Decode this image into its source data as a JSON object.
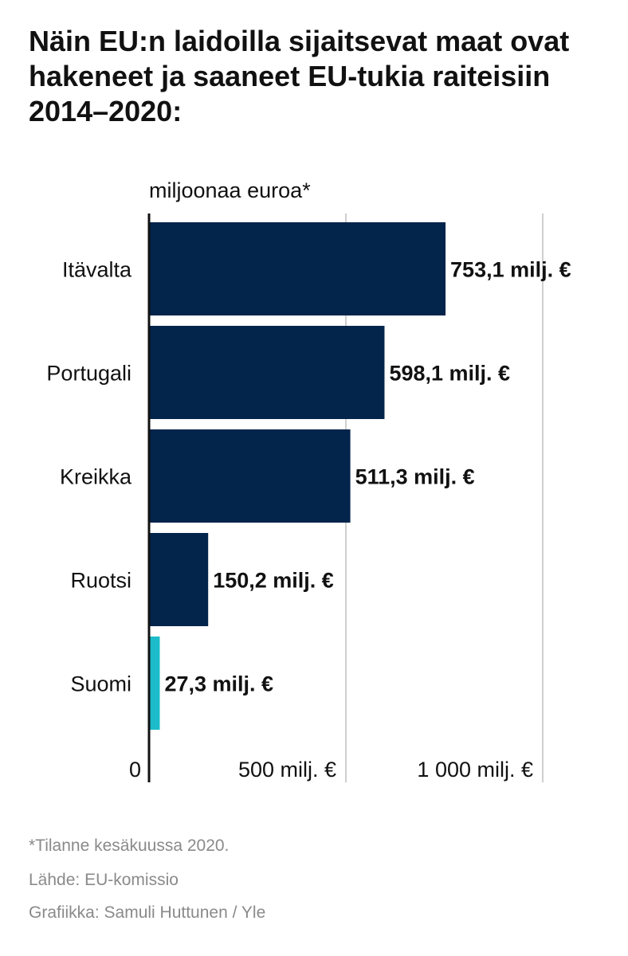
{
  "title": "Näin EU:n laidoilla sijaitsevat maat ovat hakeneet ja saaneet EU-tukia raiteisiin 2014–2020:",
  "chart_data": {
    "type": "bar",
    "orientation": "horizontal",
    "unit_label": "miljoonaa euroa*",
    "categories": [
      "Itävalta",
      "Portugali",
      "Kreikka",
      "Ruotsi",
      "Suomi"
    ],
    "values": [
      753.1,
      598.1,
      511.3,
      150.2,
      27.3
    ],
    "data_labels": [
      "753,1 milj. €",
      "598,1 milj. €",
      "511,3 milj. €",
      "150,2 milj. €",
      "27,3 milj. €"
    ],
    "highlight_category": "Suomi",
    "colors": {
      "default": "#03244b",
      "highlight": "#1cbccb",
      "gridline": "#cfcfcf",
      "axis": "#111111"
    },
    "xlim": [
      0,
      1000
    ],
    "x_ticks": [
      {
        "value": 0,
        "label": "0"
      },
      {
        "value": 500,
        "label": "500 milj. €"
      },
      {
        "value": 1000,
        "label": "1 000 milj. €"
      }
    ],
    "grid": true
  },
  "footer": {
    "note": "*Tilanne kesäkuussa 2020.",
    "source": "Lähde: EU-komissio",
    "credit": "Grafiikka: Samuli Huttunen / Yle"
  }
}
